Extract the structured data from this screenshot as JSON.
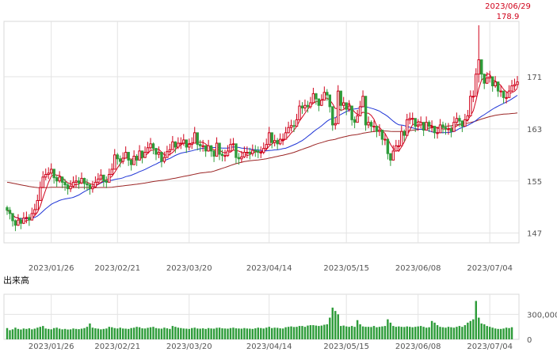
{
  "chart_data": [
    {
      "type": "candlestick",
      "title": "",
      "high_annotation": {
        "date": "2023/06/29",
        "value": "178.9",
        "color": "#d0021b"
      },
      "y_ticks": [
        "171",
        "163",
        "155",
        "147"
      ],
      "ylim": [
        145.5,
        179.5
      ],
      "x_ticks": [
        "2023/01/26",
        "2023/02/21",
        "2023/03/20",
        "2023/04/14",
        "2023/05/15",
        "2023/06/08",
        "2023/07/04"
      ],
      "x_tick_index": [
        16,
        40,
        66,
        95,
        123,
        149,
        175
      ],
      "grid": true,
      "colors": {
        "up": "#d0021b",
        "down": "#2e9c3a",
        "ma_short": "#d0021b",
        "ma_mid": "#1f35d6",
        "ma_long": "#9b2525"
      },
      "closes": [
        150.5,
        150.0,
        148.9,
        148.2,
        149.0,
        148.5,
        149.3,
        149.4,
        149.0,
        150.0,
        150.6,
        152.0,
        154.0,
        155.6,
        156.0,
        156.2,
        156.8,
        155.5,
        155.0,
        155.6,
        154.8,
        154.4,
        153.8,
        154.2,
        154.8,
        155.0,
        154.7,
        155.4,
        154.6,
        154.4,
        153.8,
        154.1,
        154.8,
        155.3,
        155.9,
        155.0,
        154.8,
        156.0,
        156.8,
        159.0,
        158.4,
        158.0,
        158.5,
        159.4,
        158.2,
        157.5,
        158.8,
        158.2,
        159.6,
        158.6,
        159.4,
        160.1,
        160.7,
        160.0,
        159.1,
        159.4,
        158.0,
        158.6,
        159.5,
        159.8,
        161.0,
        160.2,
        160.8,
        160.8,
        161.3,
        160.2,
        160.6,
        160.8,
        162.4,
        160.6,
        160.4,
        160.4,
        159.6,
        160.4,
        159.6,
        158.8,
        160.8,
        159.1,
        158.9,
        158.9,
        159.6,
        160.6,
        160.7,
        158.6,
        158.4,
        158.7,
        159.4,
        159.4,
        159.2,
        159.7,
        159.6,
        159.4,
        159.4,
        160.0,
        160.6,
        162.4,
        160.9,
        161.2,
        160.7,
        161.4,
        161.4,
        162.4,
        163.2,
        163.5,
        163.4,
        164.4,
        166.5,
        166.2,
        166.6,
        166.4,
        167.0,
        168.4,
        167.6,
        166.6,
        167.4,
        168.6,
        168.2,
        166.4,
        163.6,
        163.8,
        168.8,
        166.6,
        167.0,
        166.0,
        166.5,
        164.4,
        164.0,
        165.0,
        166.4,
        168.0,
        163.6,
        164.0,
        163.4,
        163.4,
        162.6,
        162.8,
        161.4,
        161.4,
        159.2,
        158.2,
        159.6,
        160.4,
        160.4,
        162.6,
        162.0,
        164.4,
        164.6,
        164.6,
        163.4,
        163.6,
        164.0,
        162.8,
        164.0,
        163.4,
        163.4,
        162.4,
        162.4,
        163.6,
        163.2,
        163.0,
        163.0,
        162.6,
        164.0,
        164.6,
        164.2,
        163.4,
        164.4,
        165.0,
        168.0,
        168.0,
        171.4,
        173.6,
        171.4,
        170.0,
        170.8,
        171.0,
        169.6,
        170.2,
        168.8,
        168.8,
        167.8,
        167.8,
        168.8,
        169.6,
        169.8,
        170.2
      ],
      "high_date_index": 176,
      "highs": [
        151.2,
        151.0,
        149.8,
        149.1,
        149.9,
        149.4,
        150.2,
        150.3,
        149.9,
        150.9,
        151.5,
        152.9,
        154.9,
        156.5,
        156.9,
        157.1,
        157.7,
        156.4,
        155.9,
        156.5,
        155.7,
        155.3,
        154.7,
        155.1,
        155.7,
        155.9,
        155.6,
        156.3,
        155.5,
        155.3,
        154.7,
        155.0,
        155.7,
        156.2,
        156.8,
        155.9,
        155.7,
        156.9,
        157.7,
        159.9,
        159.3,
        158.9,
        159.4,
        160.3,
        159.1,
        158.4,
        159.7,
        159.1,
        160.5,
        159.5,
        160.3,
        161.0,
        161.6,
        160.9,
        160.0,
        160.3,
        158.9,
        159.5,
        160.4,
        160.7,
        161.9,
        161.1,
        161.7,
        161.7,
        162.2,
        161.1,
        161.5,
        161.7,
        163.3,
        161.5,
        161.3,
        161.3,
        160.5,
        161.3,
        160.5,
        159.7,
        161.7,
        160.0,
        159.8,
        159.8,
        160.5,
        161.5,
        161.6,
        159.5,
        159.3,
        159.6,
        160.3,
        160.3,
        160.1,
        160.6,
        160.5,
        160.3,
        160.3,
        160.9,
        161.5,
        163.3,
        161.8,
        162.1,
        161.6,
        162.3,
        162.3,
        163.3,
        164.1,
        164.4,
        164.3,
        165.3,
        167.4,
        167.1,
        167.5,
        167.3,
        167.9,
        169.3,
        168.5,
        167.5,
        168.3,
        169.5,
        169.1,
        167.3,
        164.5,
        164.7,
        169.7,
        167.5,
        167.9,
        166.9,
        167.4,
        165.3,
        164.9,
        165.9,
        167.3,
        168.9,
        164.5,
        164.9,
        164.3,
        164.3,
        163.5,
        163.7,
        162.3,
        162.3,
        160.1,
        159.1,
        160.5,
        161.3,
        161.3,
        163.5,
        162.9,
        165.3,
        165.5,
        165.5,
        164.3,
        164.5,
        164.9,
        163.7,
        164.9,
        164.3,
        164.3,
        163.3,
        163.3,
        164.5,
        164.1,
        163.9,
        163.9,
        163.5,
        164.9,
        165.5,
        165.1,
        164.3,
        165.3,
        165.9,
        168.9,
        168.9,
        172.3,
        178.9,
        172.3,
        170.9,
        171.7,
        171.9,
        170.5,
        171.1,
        169.7,
        169.7,
        168.7,
        168.7,
        169.7,
        170.5,
        170.7,
        171.1
      ],
      "lows": [
        149.8,
        149.1,
        148.0,
        147.3,
        148.1,
        147.6,
        148.4,
        148.5,
        148.1,
        149.1,
        149.7,
        151.1,
        153.1,
        154.7,
        155.1,
        155.3,
        155.9,
        154.6,
        154.1,
        154.7,
        153.9,
        153.5,
        152.9,
        153.3,
        153.9,
        154.1,
        153.8,
        154.5,
        153.7,
        153.5,
        152.9,
        153.2,
        153.9,
        154.4,
        155.0,
        154.1,
        153.9,
        155.1,
        155.9,
        158.1,
        157.5,
        157.1,
        157.6,
        158.5,
        157.3,
        156.6,
        157.9,
        157.3,
        158.7,
        157.7,
        158.5,
        159.2,
        159.8,
        159.1,
        158.2,
        158.5,
        157.1,
        157.7,
        158.6,
        158.9,
        160.1,
        159.3,
        159.9,
        159.9,
        160.4,
        159.3,
        159.7,
        159.9,
        161.5,
        159.7,
        159.5,
        159.5,
        158.7,
        159.5,
        158.7,
        157.9,
        159.9,
        158.2,
        158.0,
        158.0,
        158.7,
        159.7,
        159.8,
        157.7,
        157.5,
        157.8,
        158.5,
        158.5,
        158.3,
        158.8,
        158.7,
        158.5,
        158.5,
        159.1,
        159.7,
        161.5,
        160.0,
        160.3,
        159.8,
        160.5,
        160.5,
        161.5,
        162.3,
        162.6,
        162.5,
        163.5,
        165.6,
        165.3,
        165.7,
        165.5,
        166.1,
        167.5,
        166.7,
        165.7,
        166.5,
        167.7,
        167.3,
        165.5,
        162.7,
        162.9,
        167.9,
        165.7,
        166.1,
        165.1,
        165.6,
        163.5,
        163.1,
        164.1,
        165.5,
        167.1,
        162.7,
        163.1,
        162.5,
        162.5,
        161.7,
        161.9,
        160.5,
        160.5,
        158.3,
        157.3,
        158.7,
        159.5,
        159.5,
        161.7,
        161.1,
        163.5,
        163.7,
        163.7,
        162.5,
        162.7,
        163.1,
        161.9,
        163.1,
        162.5,
        162.5,
        161.5,
        161.5,
        162.7,
        162.3,
        162.1,
        162.1,
        161.7,
        163.1,
        163.7,
        163.3,
        162.5,
        163.5,
        164.1,
        167.1,
        167.1,
        170.5,
        170.1,
        170.5,
        169.1,
        169.9,
        170.1,
        168.7,
        169.3,
        167.9,
        167.9,
        166.9,
        166.9,
        167.9,
        168.7,
        168.9,
        169.3
      ]
    },
    {
      "type": "bar",
      "title": "出来高",
      "y_ticks": [
        "300,000,",
        "0"
      ],
      "x_ticks": [
        "2023/01/26",
        "2023/02/21",
        "2023/03/20",
        "2023/04/14",
        "2023/05/15",
        "2023/06/08",
        "2023/07/04"
      ],
      "ylim": [
        0,
        540000
      ],
      "volumes": [
        135000,
        110000,
        120000,
        140000,
        125000,
        118000,
        130000,
        125000,
        132000,
        120000,
        128000,
        140000,
        150000,
        160000,
        130000,
        125000,
        120000,
        135000,
        140000,
        128000,
        120000,
        125000,
        118000,
        120000,
        130000,
        125000,
        122000,
        128000,
        135000,
        150000,
        190000,
        140000,
        132000,
        128000,
        120000,
        125000,
        130000,
        150000,
        145000,
        135000,
        130000,
        140000,
        130000,
        128000,
        125000,
        135000,
        140000,
        150000,
        145000,
        132000,
        130000,
        138000,
        145000,
        150000,
        135000,
        130000,
        128000,
        140000,
        132000,
        125000,
        160000,
        150000,
        140000,
        135000,
        130000,
        128000,
        125000,
        135000,
        140000,
        130000,
        128000,
        132000,
        125000,
        135000,
        130000,
        128000,
        138000,
        140000,
        132000,
        130000,
        128000,
        135000,
        140000,
        132000,
        130000,
        128000,
        135000,
        130000,
        128000,
        125000,
        132000,
        140000,
        135000,
        130000,
        140000,
        150000,
        135000,
        140000,
        138000,
        132000,
        130000,
        145000,
        150000,
        155000,
        148000,
        150000,
        160000,
        160000,
        150000,
        165000,
        170000,
        170000,
        165000,
        160000,
        165000,
        175000,
        180000,
        260000,
        380000,
        340000,
        300000,
        160000,
        165000,
        155000,
        150000,
        160000,
        150000,
        230000,
        180000,
        155000,
        150000,
        150000,
        148000,
        160000,
        145000,
        150000,
        155000,
        160000,
        240000,
        200000,
        160000,
        150000,
        155000,
        150000,
        148000,
        155000,
        150000,
        145000,
        150000,
        155000,
        160000,
        150000,
        140000,
        145000,
        220000,
        200000,
        170000,
        150000,
        145000,
        140000,
        150000,
        145000,
        140000,
        150000,
        160000,
        150000,
        170000,
        200000,
        220000,
        240000,
        460000,
        260000,
        190000,
        180000,
        160000,
        150000,
        140000,
        130000,
        125000,
        125000,
        130000,
        140000,
        135000,
        145000
      ]
    }
  ]
}
